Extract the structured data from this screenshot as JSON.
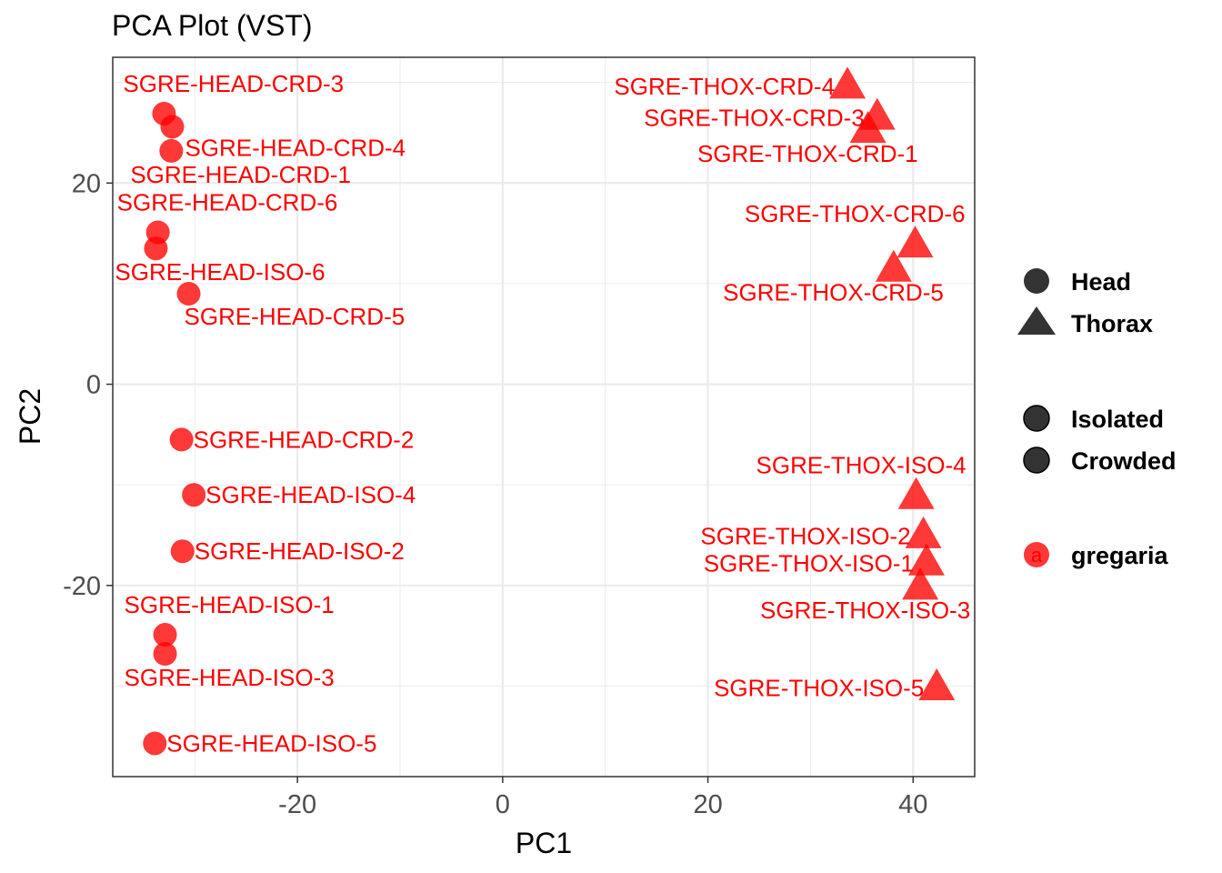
{
  "chart_data": {
    "type": "scatter",
    "title": "PCA Plot (VST)",
    "xlabel": "PC1",
    "ylabel": "PC2",
    "xlim": [
      -38,
      46
    ],
    "ylim": [
      -39,
      32.5
    ],
    "x_ticks": [
      -20,
      0,
      20,
      40
    ],
    "y_ticks": [
      -20,
      0,
      20
    ],
    "x_tick_labels": [
      "-20",
      "0",
      "20",
      "40"
    ],
    "y_tick_labels": [
      "-20",
      "0",
      "20"
    ],
    "grid": true,
    "point_color": "#ff0000",
    "points": [
      {
        "label": "SGRE-HEAD-CRD-3",
        "x": -33.0,
        "y": 26.9,
        "shape": "circle",
        "label_pos": "above-left"
      },
      {
        "label": "SGRE-HEAD-CRD-4",
        "x": -32.2,
        "y": 25.6,
        "shape": "circle",
        "label_pos": "below-right"
      },
      {
        "label": "SGRE-HEAD-CRD-1",
        "x": -32.3,
        "y": 23.2,
        "shape": "circle",
        "label_pos": "below-left"
      },
      {
        "label": "SGRE-HEAD-CRD-6",
        "x": -33.6,
        "y": 15.1,
        "shape": "circle",
        "label_pos": "above-left"
      },
      {
        "label": "SGRE-HEAD-ISO-6",
        "x": -33.8,
        "y": 13.5,
        "shape": "circle",
        "label_pos": "below-left"
      },
      {
        "label": "SGRE-HEAD-CRD-5",
        "x": -30.6,
        "y": 9.0,
        "shape": "circle",
        "label_pos": "below-left"
      },
      {
        "label": "SGRE-HEAD-CRD-2",
        "x": -31.3,
        "y": -5.5,
        "shape": "circle",
        "label_pos": "right"
      },
      {
        "label": "SGRE-HEAD-ISO-4",
        "x": -30.1,
        "y": -11.0,
        "shape": "circle",
        "label_pos": "right"
      },
      {
        "label": "SGRE-HEAD-ISO-2",
        "x": -31.2,
        "y": -16.6,
        "shape": "circle",
        "label_pos": "right"
      },
      {
        "label": "SGRE-HEAD-ISO-1",
        "x": -32.9,
        "y": -24.9,
        "shape": "circle",
        "label_pos": "above-left"
      },
      {
        "label": "SGRE-HEAD-ISO-3",
        "x": -32.9,
        "y": -26.8,
        "shape": "circle",
        "label_pos": "below-left"
      },
      {
        "label": "SGRE-HEAD-ISO-5",
        "x": -33.9,
        "y": -35.7,
        "shape": "circle",
        "label_pos": "right"
      },
      {
        "label": "SGRE-THOX-CRD-4",
        "x": 33.6,
        "y": 29.6,
        "shape": "triangle",
        "label_pos": "left"
      },
      {
        "label": "SGRE-THOX-CRD-3",
        "x": 36.5,
        "y": 26.5,
        "shape": "triangle",
        "label_pos": "left"
      },
      {
        "label": "SGRE-THOX-CRD-1",
        "x": 35.6,
        "y": 25.2,
        "shape": "triangle",
        "label_pos": "below-right"
      },
      {
        "label": "SGRE-THOX-CRD-6",
        "x": 40.2,
        "y": 13.8,
        "shape": "triangle",
        "label_pos": "above-right"
      },
      {
        "label": "SGRE-THOX-CRD-5",
        "x": 38.1,
        "y": 11.4,
        "shape": "triangle",
        "label_pos": "below-right"
      },
      {
        "label": "SGRE-THOX-ISO-4",
        "x": 40.3,
        "y": -11.2,
        "shape": "triangle",
        "label_pos": "above-right"
      },
      {
        "label": "SGRE-THOX-ISO-2",
        "x": 41.0,
        "y": -15.1,
        "shape": "triangle",
        "label_pos": "left"
      },
      {
        "label": "SGRE-THOX-ISO-1",
        "x": 41.3,
        "y": -17.8,
        "shape": "triangle",
        "label_pos": "left"
      },
      {
        "label": "SGRE-THOX-ISO-3",
        "x": 40.7,
        "y": -20.2,
        "shape": "triangle",
        "label_pos": "below-right"
      },
      {
        "label": "SGRE-THOX-ISO-5",
        "x": 42.3,
        "y": -30.2,
        "shape": "triangle",
        "label_pos": "left"
      }
    ],
    "legend": {
      "position": "right",
      "shape_group": [
        {
          "label": "Head",
          "shape": "circle"
        },
        {
          "label": "Thorax",
          "shape": "triangle"
        }
      ],
      "condition_group": [
        {
          "label": "Isolated",
          "shape": "circle"
        },
        {
          "label": "Crowded",
          "shape": "circle"
        }
      ],
      "color_group": [
        {
          "label": "gregaria",
          "key_text": "a",
          "color": "#ff0000"
        }
      ]
    }
  }
}
